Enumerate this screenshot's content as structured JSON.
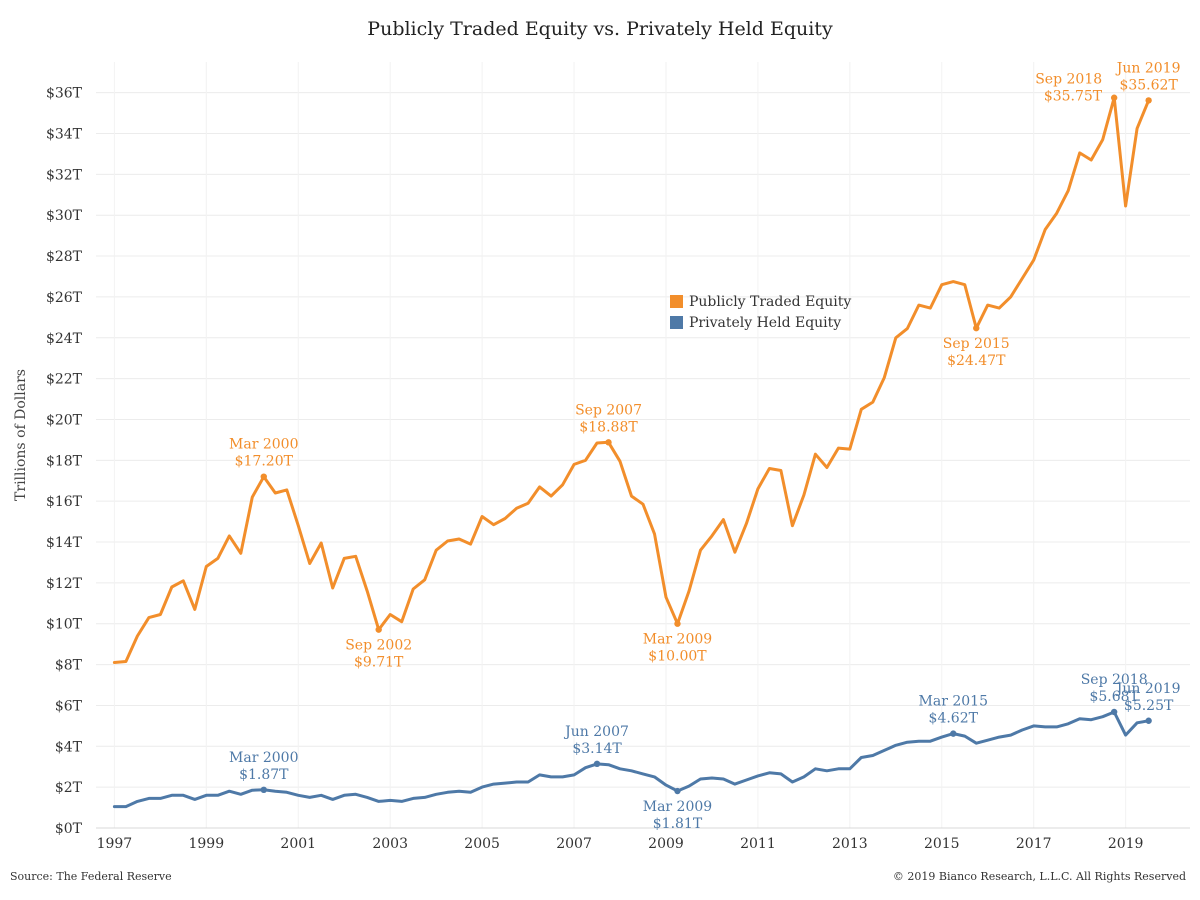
{
  "chart_data": {
    "type": "line",
    "title": "Publicly Traded Equity vs. Privately Held Equity",
    "ylabel": "Trillions of Dollars",
    "xlabel": "",
    "ylim": [
      0,
      37.5
    ],
    "xlim": [
      1996.6,
      2020.4
    ],
    "yticks": [
      0,
      2,
      4,
      6,
      8,
      10,
      12,
      14,
      16,
      18,
      20,
      22,
      24,
      26,
      28,
      30,
      32,
      34,
      36
    ],
    "ytick_labels": [
      "$0T",
      "$2T",
      "$4T",
      "$6T",
      "$8T",
      "$10T",
      "$12T",
      "$14T",
      "$16T",
      "$18T",
      "$20T",
      "$22T",
      "$24T",
      "$26T",
      "$28T",
      "$30T",
      "$32T",
      "$34T",
      "$36T"
    ],
    "xticks": [
      1997,
      1999,
      2001,
      2003,
      2005,
      2007,
      2009,
      2011,
      2013,
      2015,
      2017,
      2019
    ],
    "xtick_labels": [
      "1997",
      "1999",
      "2001",
      "2003",
      "2005",
      "2007",
      "2009",
      "2011",
      "2013",
      "2015",
      "2017",
      "2019"
    ],
    "grid": true,
    "legend_position": "center",
    "series": [
      {
        "name": "Publicly Traded Equity",
        "color": "#F28E2B",
        "x": [
          1997.0,
          1997.25,
          1997.5,
          1997.75,
          1998.0,
          1998.25,
          1998.5,
          1998.75,
          1999.0,
          1999.25,
          1999.5,
          1999.75,
          2000.0,
          2000.25,
          2000.5,
          2000.75,
          2001.0,
          2001.25,
          2001.5,
          2001.75,
          2002.0,
          2002.25,
          2002.5,
          2002.75,
          2003.0,
          2003.25,
          2003.5,
          2003.75,
          2004.0,
          2004.25,
          2004.5,
          2004.75,
          2005.0,
          2005.25,
          2005.5,
          2005.75,
          2006.0,
          2006.25,
          2006.5,
          2006.75,
          2007.0,
          2007.25,
          2007.5,
          2007.75,
          2008.0,
          2008.25,
          2008.5,
          2008.75,
          2009.0,
          2009.25,
          2009.5,
          2009.75,
          2010.0,
          2010.25,
          2010.5,
          2010.75,
          2011.0,
          2011.25,
          2011.5,
          2011.75,
          2012.0,
          2012.25,
          2012.5,
          2012.75,
          2013.0,
          2013.25,
          2013.5,
          2013.75,
          2014.0,
          2014.25,
          2014.5,
          2014.75,
          2015.0,
          2015.25,
          2015.5,
          2015.75,
          2016.0,
          2016.25,
          2016.5,
          2016.75,
          2017.0,
          2017.25,
          2017.5,
          2017.75,
          2018.0,
          2018.25,
          2018.5,
          2018.75,
          2019.0,
          2019.25,
          2019.5
        ],
        "values": [
          8.1,
          8.15,
          9.4,
          10.3,
          10.45,
          11.8,
          12.1,
          10.7,
          12.8,
          13.2,
          14.3,
          13.45,
          16.2,
          17.2,
          16.4,
          16.55,
          14.8,
          12.95,
          13.95,
          11.75,
          13.2,
          13.3,
          11.6,
          9.71,
          10.45,
          10.1,
          11.7,
          12.15,
          13.6,
          14.05,
          14.15,
          13.9,
          15.25,
          14.85,
          15.15,
          15.65,
          15.9,
          16.7,
          16.25,
          16.8,
          17.8,
          18.0,
          18.85,
          18.88,
          17.95,
          16.25,
          15.85,
          14.4,
          11.3,
          10.0,
          11.6,
          13.6,
          14.3,
          15.1,
          13.5,
          14.9,
          16.6,
          17.6,
          17.5,
          14.8,
          16.3,
          18.3,
          17.65,
          18.6,
          18.55,
          20.5,
          20.85,
          22.05,
          24.0,
          24.45,
          25.6,
          25.45,
          26.6,
          26.75,
          26.6,
          24.47,
          25.6,
          25.45,
          26.0,
          26.9,
          27.8,
          29.3,
          30.1,
          31.2,
          33.05,
          32.7,
          33.7,
          35.75,
          30.45,
          34.25,
          35.62
        ]
      },
      {
        "name": "Privately Held Equity",
        "color": "#4E79A7",
        "x": [
          1997.0,
          1997.25,
          1997.5,
          1997.75,
          1998.0,
          1998.25,
          1998.5,
          1998.75,
          1999.0,
          1999.25,
          1999.5,
          1999.75,
          2000.0,
          2000.25,
          2000.5,
          2000.75,
          2001.0,
          2001.25,
          2001.5,
          2001.75,
          2002.0,
          2002.25,
          2002.5,
          2002.75,
          2003.0,
          2003.25,
          2003.5,
          2003.75,
          2004.0,
          2004.25,
          2004.5,
          2004.75,
          2005.0,
          2005.25,
          2005.5,
          2005.75,
          2006.0,
          2006.25,
          2006.5,
          2006.75,
          2007.0,
          2007.25,
          2007.5,
          2007.75,
          2008.0,
          2008.25,
          2008.5,
          2008.75,
          2009.0,
          2009.25,
          2009.5,
          2009.75,
          2010.0,
          2010.25,
          2010.5,
          2010.75,
          2011.0,
          2011.25,
          2011.5,
          2011.75,
          2012.0,
          2012.25,
          2012.5,
          2012.75,
          2013.0,
          2013.25,
          2013.5,
          2013.75,
          2014.0,
          2014.25,
          2014.5,
          2014.75,
          2015.0,
          2015.25,
          2015.5,
          2015.75,
          2016.0,
          2016.25,
          2016.5,
          2016.75,
          2017.0,
          2017.25,
          2017.5,
          2017.75,
          2018.0,
          2018.25,
          2018.5,
          2018.75,
          2019.0,
          2019.25,
          2019.5
        ],
        "values": [
          1.05,
          1.05,
          1.3,
          1.45,
          1.45,
          1.6,
          1.6,
          1.4,
          1.6,
          1.6,
          1.8,
          1.65,
          1.85,
          1.87,
          1.8,
          1.75,
          1.6,
          1.5,
          1.6,
          1.4,
          1.6,
          1.65,
          1.5,
          1.3,
          1.35,
          1.3,
          1.45,
          1.5,
          1.65,
          1.75,
          1.8,
          1.75,
          2.0,
          2.15,
          2.2,
          2.25,
          2.25,
          2.6,
          2.5,
          2.5,
          2.6,
          2.95,
          3.14,
          3.1,
          2.9,
          2.8,
          2.65,
          2.5,
          2.1,
          1.81,
          2.05,
          2.4,
          2.45,
          2.4,
          2.15,
          2.35,
          2.55,
          2.7,
          2.65,
          2.25,
          2.5,
          2.9,
          2.8,
          2.9,
          2.9,
          3.45,
          3.55,
          3.8,
          4.05,
          4.2,
          4.25,
          4.25,
          4.45,
          4.62,
          4.5,
          4.15,
          4.3,
          4.45,
          4.55,
          4.8,
          5.0,
          4.95,
          4.95,
          5.1,
          5.35,
          5.3,
          5.45,
          5.68,
          4.55,
          5.15,
          5.25
        ]
      }
    ],
    "annotations": [
      {
        "series": 0,
        "x": 2000.25,
        "y": 17.2,
        "lines": [
          "Mar 2000",
          "$17.20T"
        ],
        "pos": "above"
      },
      {
        "series": 0,
        "x": 2002.75,
        "y": 9.71,
        "lines": [
          "Sep 2002",
          "$9.71T"
        ],
        "pos": "below"
      },
      {
        "series": 0,
        "x": 2007.75,
        "y": 18.88,
        "lines": [
          "Sep 2007",
          "$18.88T"
        ],
        "pos": "above"
      },
      {
        "series": 0,
        "x": 2009.25,
        "y": 10.0,
        "lines": [
          "Mar 2009",
          "$10.00T"
        ],
        "pos": "below"
      },
      {
        "series": 0,
        "x": 2015.75,
        "y": 24.47,
        "lines": [
          "Sep 2015",
          "$24.47T"
        ],
        "pos": "below"
      },
      {
        "series": 0,
        "x": 2018.75,
        "y": 35.75,
        "lines": [
          "Sep 2018",
          "$35.75T"
        ],
        "pos": "left"
      },
      {
        "series": 0,
        "x": 2019.5,
        "y": 35.62,
        "lines": [
          "Jun 2019",
          "$35.62T"
        ],
        "pos": "above"
      },
      {
        "series": 1,
        "x": 2000.25,
        "y": 1.87,
        "lines": [
          "Mar 2000",
          "$1.87T"
        ],
        "pos": "above"
      },
      {
        "series": 1,
        "x": 2007.5,
        "y": 3.14,
        "lines": [
          "Jun 2007",
          "$3.14T"
        ],
        "pos": "above"
      },
      {
        "series": 1,
        "x": 2009.25,
        "y": 1.81,
        "lines": [
          "Mar 2009",
          "$1.81T"
        ],
        "pos": "below"
      },
      {
        "series": 1,
        "x": 2015.25,
        "y": 4.62,
        "lines": [
          "Mar 2015",
          "$4.62T"
        ],
        "pos": "above"
      },
      {
        "series": 1,
        "x": 2018.75,
        "y": 5.68,
        "lines": [
          "Sep 2018",
          "$5.68T"
        ],
        "pos": "above"
      },
      {
        "series": 1,
        "x": 2019.5,
        "y": 5.25,
        "lines": [
          "Jun 2019",
          "$5.25T"
        ],
        "pos": "above"
      }
    ]
  },
  "footer": {
    "source": "Source: The Federal Reserve",
    "copyright": "© 2019 Bianco Research, L.L.C. All Rights Reserved"
  }
}
